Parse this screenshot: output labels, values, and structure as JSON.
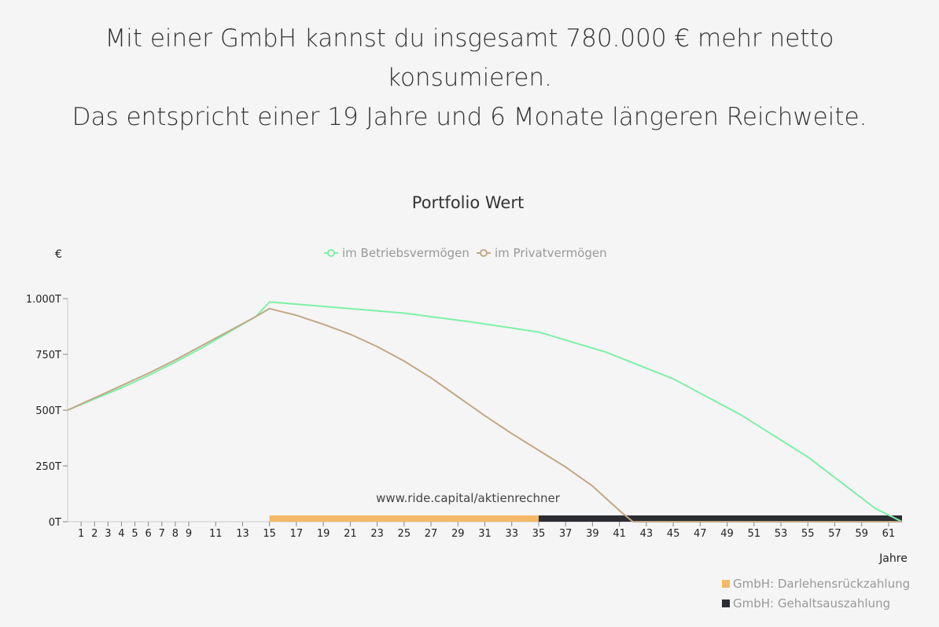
{
  "headline": {
    "line1": "Mit einer GmbH kannst du insgesamt 780.000 € mehr netto",
    "line2": "konsumieren.",
    "line3": "Das entspricht einer 19 Jahre und 6 Monate längeren Reichweite."
  },
  "watermark": "www.ride.capital/aktienrechner",
  "chart_data": {
    "type": "line",
    "title": "Portfolio Wert",
    "ylabel": "€",
    "xlabel": "Jahre",
    "ylim": [
      0,
      1000
    ],
    "xlim": [
      0,
      62
    ],
    "y_ticks": [
      0,
      250,
      500,
      750,
      1000
    ],
    "y_tick_labels": [
      "0T",
      "250T",
      "500T",
      "750T",
      "1.000T"
    ],
    "x_tick_labels": [
      "1",
      "2",
      "3",
      "4",
      "5",
      "6",
      "7",
      "8",
      "9",
      "11",
      "13",
      "15",
      "17",
      "19",
      "21",
      "23",
      "25",
      "27",
      "29",
      "31",
      "33",
      "35",
      "37",
      "39",
      "41",
      "43",
      "45",
      "47",
      "49",
      "51",
      "53",
      "55",
      "57",
      "59",
      "61"
    ],
    "legend_position": "top-center",
    "series": [
      {
        "name": "im Betriebsvermögen",
        "color": "#7ef0a8",
        "points": [
          [
            0,
            500
          ],
          [
            2,
            550
          ],
          [
            4,
            600
          ],
          [
            6,
            655
          ],
          [
            8,
            715
          ],
          [
            10,
            780
          ],
          [
            12,
            850
          ],
          [
            14,
            920
          ],
          [
            15,
            985
          ],
          [
            17,
            975
          ],
          [
            20,
            960
          ],
          [
            25,
            935
          ],
          [
            30,
            895
          ],
          [
            35,
            850
          ],
          [
            40,
            760
          ],
          [
            45,
            640
          ],
          [
            50,
            480
          ],
          [
            55,
            290
          ],
          [
            60,
            60
          ],
          [
            62,
            0
          ]
        ]
      },
      {
        "name": "im Privatvermögen",
        "color": "#c2a886",
        "points": [
          [
            0,
            500
          ],
          [
            2,
            555
          ],
          [
            4,
            610
          ],
          [
            6,
            665
          ],
          [
            8,
            725
          ],
          [
            10,
            790
          ],
          [
            12,
            855
          ],
          [
            14,
            920
          ],
          [
            15,
            955
          ],
          [
            17,
            925
          ],
          [
            19,
            885
          ],
          [
            21,
            840
          ],
          [
            23,
            785
          ],
          [
            25,
            720
          ],
          [
            27,
            645
          ],
          [
            29,
            560
          ],
          [
            31,
            475
          ],
          [
            33,
            395
          ],
          [
            35,
            320
          ],
          [
            37,
            245
          ],
          [
            39,
            160
          ],
          [
            40,
            105
          ],
          [
            41,
            50
          ],
          [
            42,
            0
          ],
          [
            62,
            0
          ]
        ]
      }
    ],
    "bars": [
      {
        "name": "GmbH: Darlehensrückzahlung",
        "color": "#f5b866",
        "from": 15,
        "to": 35
      },
      {
        "name": "GmbH: Gehaltsauszahlung",
        "color": "#2b2d31",
        "from": 35,
        "to": 62
      }
    ]
  }
}
